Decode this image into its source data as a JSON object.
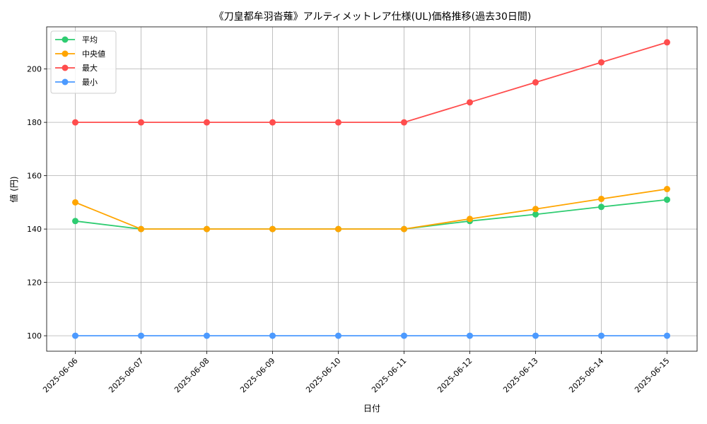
{
  "chart_data": {
    "type": "line",
    "title": "《刀皇都牟羽沓薙》アルティメットレア仕様(UL)価格推移(過去30日間)",
    "xlabel": "日付",
    "ylabel": "値 (円)",
    "categories": [
      "2025-06-06",
      "2025-06-07",
      "2025-06-08",
      "2025-06-09",
      "2025-06-10",
      "2025-06-11",
      "2025-06-12",
      "2025-06-13",
      "2025-06-14",
      "2025-06-15"
    ],
    "ylim": [
      94.2,
      215.8
    ],
    "yticks": [
      100,
      120,
      140,
      160,
      180,
      200
    ],
    "grid": true,
    "legend_position": "top-left",
    "series": [
      {
        "name": "平均",
        "color": "#2ecc71",
        "values": [
          143,
          140,
          140,
          140,
          140,
          140,
          143,
          145.5,
          148.3,
          151
        ]
      },
      {
        "name": "中央値",
        "color": "#ffa500",
        "values": [
          150,
          140,
          140,
          140,
          140,
          140,
          143.8,
          147.5,
          151.3,
          155
        ]
      },
      {
        "name": "最大",
        "color": "#ff4d4d",
        "values": [
          180,
          180,
          180,
          180,
          180,
          180,
          187.5,
          195,
          202.5,
          210
        ]
      },
      {
        "name": "最小",
        "color": "#4c9aff",
        "values": [
          100,
          100,
          100,
          100,
          100,
          100,
          100,
          100,
          100,
          100
        ]
      }
    ]
  }
}
